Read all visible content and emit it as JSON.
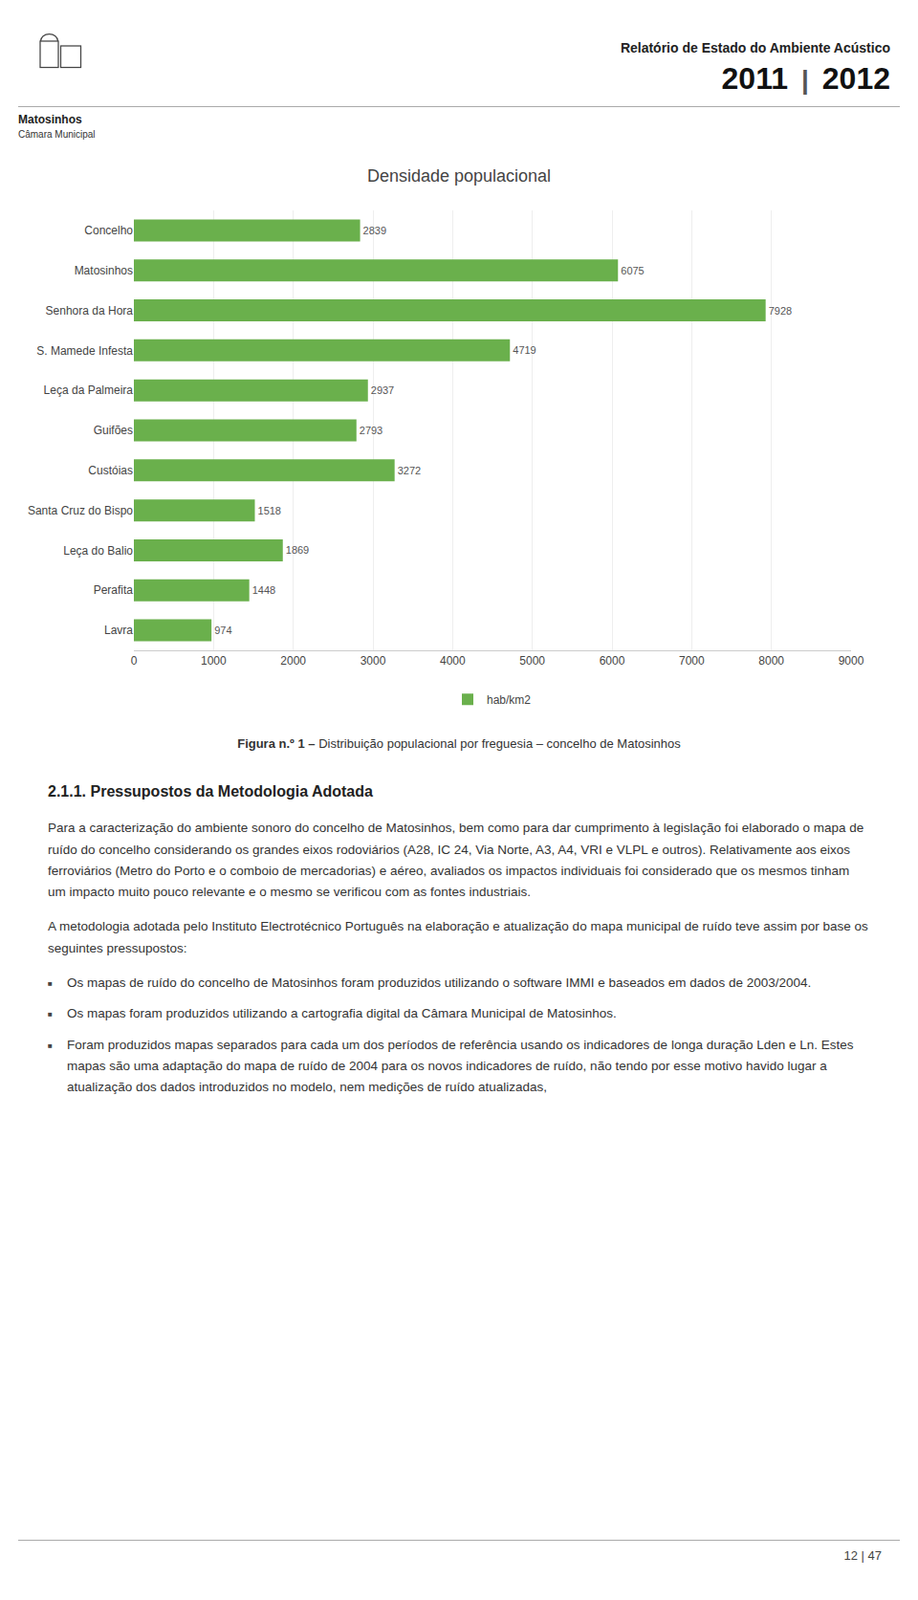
{
  "chart_data": {
    "type": "bar",
    "orientation": "horizontal",
    "title": "Densidade populacional",
    "categories": [
      "Lavra",
      "Perafita",
      "Leça do Balio",
      "Santa Cruz do Bispo",
      "Custóias",
      "Guifões",
      "Leça da Palmeira",
      "S. Mamede Infesta",
      "Senhora da Hora",
      "Matosinhos",
      "Concelho"
    ],
    "series": [
      {
        "name": "hab/km2",
        "color": "#6ab04c",
        "values": [
          974,
          1448,
          1869,
          1518,
          3272,
          2793,
          2937,
          4719,
          7928,
          6075,
          2839
        ]
      }
    ],
    "xlim": [
      0,
      9000
    ],
    "xticks": [
      0,
      1000,
      2000,
      3000,
      4000,
      5000,
      6000,
      7000,
      8000,
      9000
    ],
    "grid": true,
    "data_labels": true,
    "legend": "bottom"
  },
  "page_texts": {
    "header_title": "Relatório de Estado do Ambiente Acústico",
    "header_year_left": "2011",
    "header_separator": "|",
    "header_year_right": "2012",
    "header_org": "Matosinhos",
    "header_sub": "Câmara Municipal",
    "figure_caption_bold": "Figura n.º 1 –",
    "figure_caption_rest": " Distribuição populacional por freguesia – concelho de Matosinhos",
    "section_title": "2.1.1. Pressupostos da Metodologia Adotada",
    "para1": "Para a caracterização do ambiente sonoro do concelho de Matosinhos, bem como para dar cumprimento à legislação foi elaborado o mapa de ruído do concelho considerando os grandes eixos rodoviários (A28, IC 24, Via Norte, A3, A4, VRI e VLPL e outros). Relativamente aos eixos ferroviários (Metro do Porto e o comboio de mercadorias) e aéreo, avaliados os impactos individuais foi considerado que os mesmos tinham um impacto muito pouco relevante e o mesmo se verificou com as fontes industriais.",
    "para2": "A metodologia adotada pelo Instituto Electrotécnico Português na elaboração e atualização do mapa municipal de ruído teve assim por base os seguintes pressupostos:",
    "bullet_symbol": "■",
    "bullets": [
      "Os mapas de ruído do concelho de Matosinhos foram produzidos utilizando o software IMMI e baseados em dados de 2003/2004.",
      "Os mapas foram produzidos utilizando a cartografia digital da Câmara Municipal de Matosinhos.",
      "Foram produzidos mapas separados para cada um dos períodos de referência usando os indicadores de longa duração Lden e Ln. Estes mapas são uma adaptação do mapa de ruído de 2004 para os novos indicadores de ruído, não tendo por esse motivo havido lugar a atualização dos dados introduzidos no modelo, nem medições de ruído atualizadas,"
    ],
    "page_num": "12 | 47"
  }
}
